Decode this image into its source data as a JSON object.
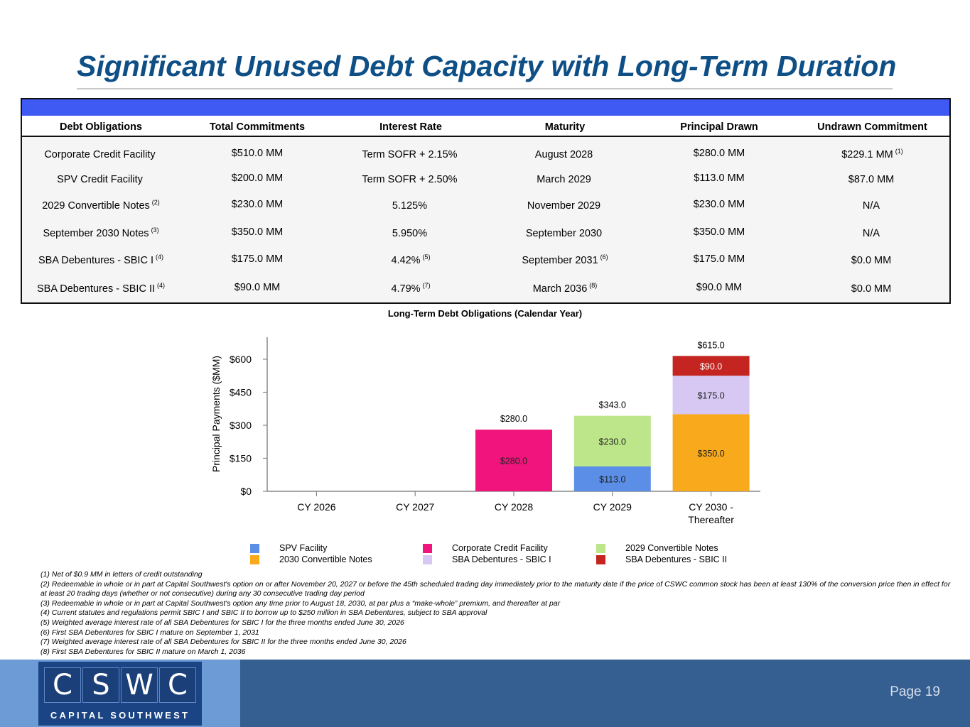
{
  "title": "Significant Unused Debt Capacity with Long-Term Duration",
  "table": {
    "headers": [
      "Debt Obligations",
      "Total Commitments",
      "Interest Rate",
      "Maturity",
      "Principal Drawn",
      "Undrawn Commitment"
    ],
    "rows": [
      {
        "obligation": "Corporate Credit Facility",
        "obligation_note": "",
        "commitments": "$510.0 MM",
        "rate": "Term SOFR + 2.15%",
        "rate_note": "",
        "maturity": "August 2028",
        "maturity_note": "",
        "drawn": "$280.0 MM",
        "undrawn": "$229.1 MM",
        "undrawn_note": "(1)"
      },
      {
        "obligation": "SPV Credit Facility",
        "obligation_note": "",
        "commitments": "$200.0 MM",
        "rate": "Term SOFR + 2.50%",
        "rate_note": "",
        "maturity": "March 2029",
        "maturity_note": "",
        "drawn": "$113.0 MM",
        "undrawn": "$87.0 MM",
        "undrawn_note": ""
      },
      {
        "obligation": "2029 Convertible Notes",
        "obligation_note": "(2)",
        "commitments": "$230.0 MM",
        "rate": "5.125%",
        "rate_note": "",
        "maturity": "November 2029",
        "maturity_note": "",
        "drawn": "$230.0 MM",
        "undrawn": "N/A",
        "undrawn_note": ""
      },
      {
        "obligation": "September 2030 Notes",
        "obligation_note": "(3)",
        "commitments": "$350.0 MM",
        "rate": "5.950%",
        "rate_note": "",
        "maturity": "September 2030",
        "maturity_note": "",
        "drawn": "$350.0 MM",
        "undrawn": "N/A",
        "undrawn_note": ""
      },
      {
        "obligation": "SBA Debentures - SBIC I",
        "obligation_note": "(4)",
        "commitments": "$175.0 MM",
        "rate": "4.42%",
        "rate_note": "(5)",
        "maturity": "September 2031",
        "maturity_note": "(6)",
        "drawn": "$175.0 MM",
        "undrawn": "$0.0 MM",
        "undrawn_note": ""
      },
      {
        "obligation": "SBA Debentures - SBIC II",
        "obligation_note": "(4)",
        "commitments": "$90.0 MM",
        "rate": "4.79%",
        "rate_note": "(7)",
        "maturity": "March 2036",
        "maturity_note": "(8)",
        "drawn": "$90.0 MM",
        "undrawn": "$0.0 MM",
        "undrawn_note": ""
      }
    ]
  },
  "chart_data": {
    "type": "bar",
    "stacked": true,
    "title": "Long-Term Debt Obligations (Calendar Year)",
    "xlabel": "",
    "ylabel": "Principal Payments ($MM)",
    "ylim": [
      0,
      700
    ],
    "yticks": [
      0,
      150,
      300,
      450,
      600
    ],
    "ytick_labels": [
      "$0",
      "$150",
      "$300",
      "$450",
      "$600"
    ],
    "categories": [
      "CY 2026",
      "CY 2027",
      "CY 2028",
      "CY 2029",
      "CY 2030 - Thereafter"
    ],
    "category_lines": [
      [
        "CY 2026"
      ],
      [
        "CY 2027"
      ],
      [
        "CY 2028"
      ],
      [
        "CY 2029"
      ],
      [
        "CY 2030 -",
        "Thereafter"
      ]
    ],
    "series": [
      {
        "name": "SPV Facility",
        "color": "#5b8ee6",
        "values": [
          0,
          0,
          0,
          113.0,
          0
        ]
      },
      {
        "name": "Corporate Credit Facility",
        "color": "#f0147c",
        "values": [
          0,
          0,
          280.0,
          0,
          0
        ]
      },
      {
        "name": "2029 Convertible Notes",
        "color": "#bde68a",
        "values": [
          0,
          0,
          0,
          230.0,
          0
        ]
      },
      {
        "name": "2030 Convertible Notes",
        "color": "#f8aa1c",
        "values": [
          0,
          0,
          0,
          0,
          350.0
        ]
      },
      {
        "name": "SBA Debentures - SBIC I",
        "color": "#d6c8f2",
        "values": [
          0,
          0,
          0,
          0,
          175.0
        ]
      },
      {
        "name": "SBA Debentures - SBIC II",
        "color": "#c42520",
        "values": [
          0,
          0,
          0,
          0,
          90.0
        ]
      }
    ],
    "totals": [
      0,
      0,
      280.0,
      343.0,
      615.0
    ],
    "legend_position": "bottom",
    "grid": false
  },
  "legend": [
    {
      "label": "SPV Facility",
      "color": "#5b8ee6"
    },
    {
      "label": "Corporate Credit Facility",
      "color": "#f0147c"
    },
    {
      "label": "2029 Convertible Notes",
      "color": "#bde68a"
    },
    {
      "label": "2030 Convertible Notes",
      "color": "#f8aa1c"
    },
    {
      "label": "SBA Debentures - SBIC I",
      "color": "#d6c8f2"
    },
    {
      "label": "SBA Debentures - SBIC II",
      "color": "#c42520"
    }
  ],
  "footnotes": [
    "(1) Net of $0.9 MM in letters of credit outstanding",
    "(2) Redeemable in whole or in part at Capital Southwest's option on or after November 20, 2027 or before the 45th scheduled trading day immediately prior to the maturity date if the price of CSWC common stock has been at least 130% of the conversion price then in effect for at least 20 trading days (whether or not consecutive) during any 30 consecutive trading day period",
    "(3) Redeemable in whole or in part at Capital Southwest's option any time prior to August 18, 2030, at par plus a “make-whole” premium, and thereafter at par",
    "(4) Current statutes and regulations permit SBIC I and SBIC II to borrow up to $250 million in SBA Debentures, subject to SBA approval",
    "(5) Weighted average interest rate of all SBA Debentures for SBIC I for the three months ended June 30, 2026",
    "(6) First SBA Debentures for SBIC I mature on September 1, 2031",
    "(7) Weighted average interest rate of all SBA Debentures for SBIC II for the three months ended June 30, 2026",
    "(8) First SBA Debentures for SBIC II mature on March 1, 2036"
  ],
  "logo": {
    "letters": [
      "C",
      "S",
      "W",
      "C"
    ],
    "subtitle": "CAPITAL SOUTHWEST"
  },
  "page": "Page 19",
  "colors": {
    "title": "#0e4f86",
    "table_band": "#3f5af3",
    "footer": "#365f91",
    "footer_left": "#6d9bd6"
  }
}
